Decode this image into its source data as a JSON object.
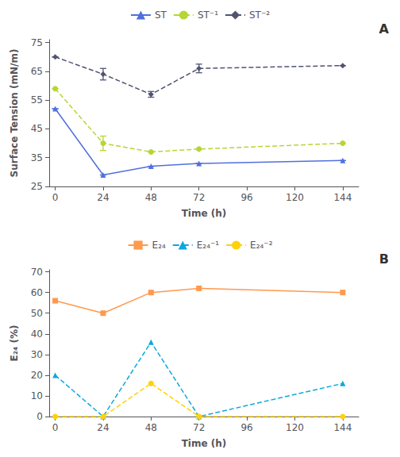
{
  "chart_data": [
    {
      "type": "line",
      "annotation": "A",
      "xlabel": "Time (h)",
      "ylabel": "Surface Tension (mN/m)",
      "x": [
        0,
        24,
        48,
        72,
        144
      ],
      "xlim": [
        -3,
        152
      ],
      "xticks": [
        0,
        24,
        48,
        72,
        96,
        120,
        144
      ],
      "ylim": [
        25,
        76
      ],
      "yticks": [
        25,
        35,
        45,
        55,
        65,
        75
      ],
      "grid": false,
      "legend": "top",
      "series": [
        {
          "name": "ST",
          "marker": "triangle",
          "line_style": "solid",
          "values": [
            52,
            29,
            32,
            33,
            34
          ],
          "yerr": [
            0,
            0,
            0,
            0,
            0
          ]
        },
        {
          "name": "ST⁻¹",
          "marker": "circle",
          "line_style": "dashed",
          "values": [
            59,
            40,
            37,
            38,
            40
          ],
          "yerr": [
            0,
            2.5,
            0,
            0,
            0
          ]
        },
        {
          "name": "ST⁻²",
          "marker": "diamond",
          "line_style": "dashed",
          "values": [
            70,
            64,
            57,
            66,
            67
          ],
          "yerr": [
            0,
            2.0,
            1.0,
            1.5,
            0
          ]
        }
      ]
    },
    {
      "type": "line",
      "annotation": "B",
      "xlabel": "Time (h)",
      "ylabel": "E₂₄ (%)",
      "x": [
        0,
        24,
        48,
        72,
        144
      ],
      "xlim": [
        -3,
        152
      ],
      "xticks": [
        0,
        24,
        48,
        72,
        96,
        120,
        144
      ],
      "ylim": [
        0,
        71
      ],
      "yticks": [
        0,
        10,
        20,
        30,
        40,
        50,
        60,
        70
      ],
      "grid": false,
      "legend": "top",
      "series": [
        {
          "name": "E₂₄",
          "marker": "square",
          "line_style": "solid",
          "values": [
            56,
            50,
            60,
            62,
            60
          ]
        },
        {
          "name": "E₂₄⁻¹",
          "marker": "triangle",
          "line_style": "dashed",
          "values": [
            20,
            0,
            36,
            0,
            16
          ]
        },
        {
          "name": "E₂₄⁻²",
          "marker": "circle",
          "line_style": "dashed",
          "values": [
            0,
            0,
            16,
            0,
            0
          ]
        }
      ]
    }
  ]
}
